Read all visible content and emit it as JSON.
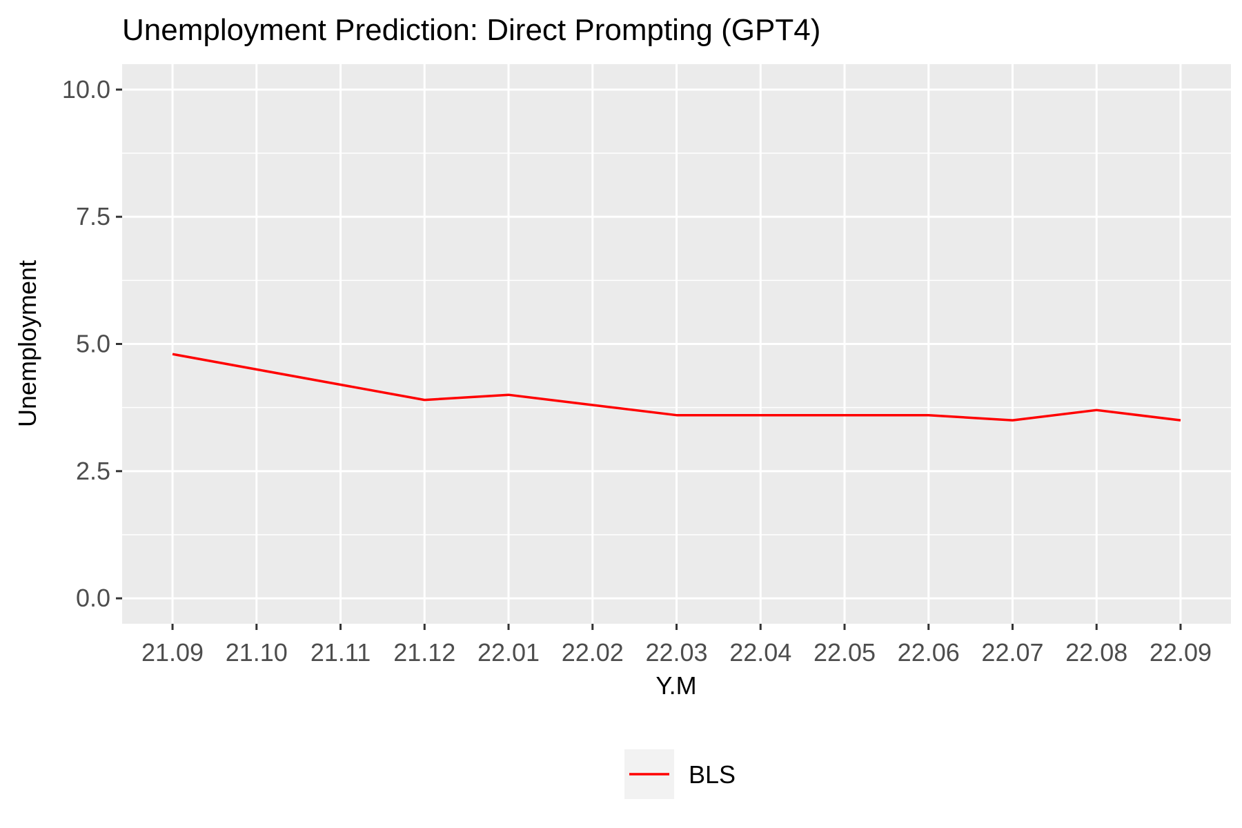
{
  "chart_data": {
    "type": "line",
    "title": "Unemployment Prediction: Direct Prompting (GPT4)",
    "xlabel": "Y.M",
    "ylabel": "Unemployment",
    "categories": [
      "21.09",
      "21.10",
      "21.11",
      "21.12",
      "22.01",
      "22.02",
      "22.03",
      "22.04",
      "22.05",
      "22.06",
      "22.07",
      "22.08",
      "22.09"
    ],
    "series": [
      {
        "name": "BLS",
        "color": "#ff0000",
        "values": [
          4.8,
          4.5,
          4.2,
          3.9,
          4.0,
          3.8,
          3.6,
          3.6,
          3.6,
          3.6,
          3.5,
          3.7,
          3.5
        ]
      }
    ],
    "yticks": [
      0.0,
      2.5,
      5.0,
      7.5,
      10.0
    ],
    "ytick_labels": [
      "0.0",
      "2.5",
      "5.0",
      "7.5",
      "10.0"
    ],
    "ylim": [
      -0.5,
      10.5
    ],
    "grid": true,
    "legend_position": "bottom",
    "panel_background": "#ebebeb"
  }
}
